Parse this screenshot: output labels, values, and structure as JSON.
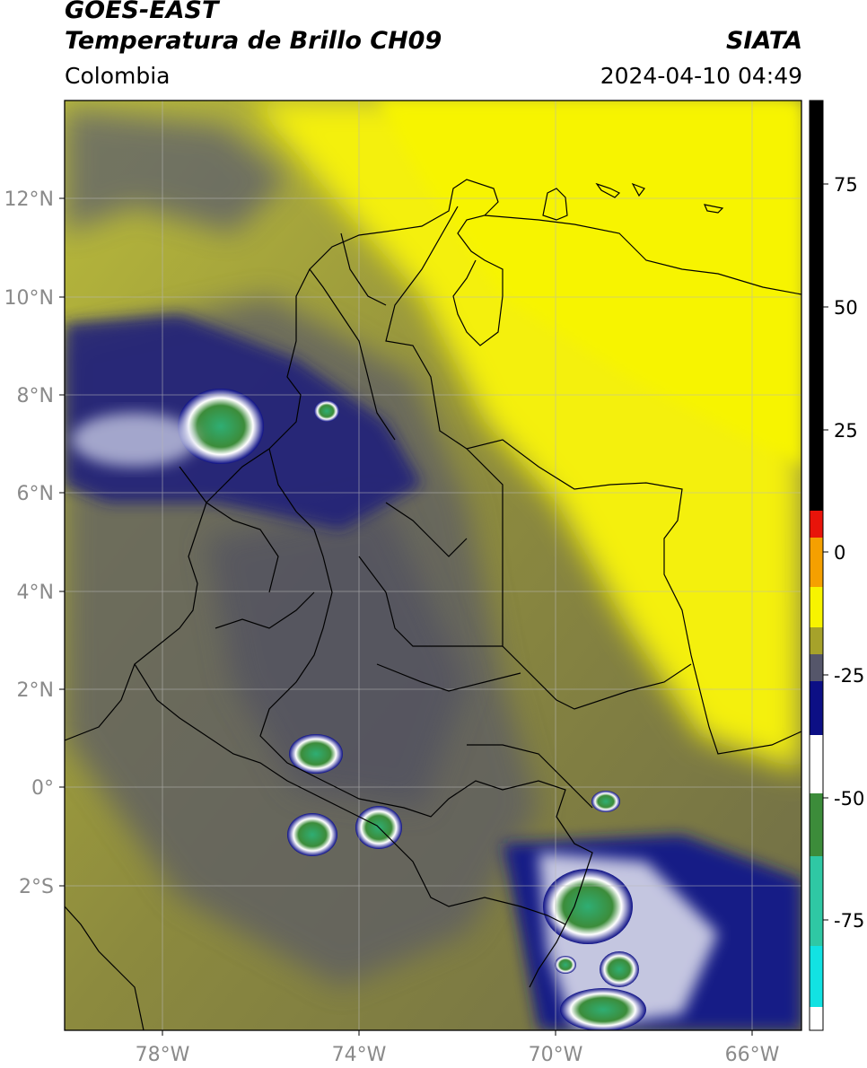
{
  "header": {
    "satellite": "GOES-EAST",
    "product": "Temperatura de Brillo CH09",
    "agency": "SIATA",
    "region": "Colombia",
    "datetime": "2024-04-10 04:49"
  },
  "axes": {
    "lat_labels": [
      "12°N",
      "10°N",
      "8°N",
      "6°N",
      "4°N",
      "2°N",
      "0°",
      "2°S"
    ],
    "lon_labels": [
      "78°W",
      "74°W",
      "70°W",
      "66°W"
    ],
    "lon_range": [
      -80,
      -65
    ],
    "lat_range": [
      -5,
      14
    ],
    "grid": true
  },
  "colorbar": {
    "tick_labels": [
      "75",
      "50",
      "25",
      "0",
      "-25",
      "-50",
      "-75"
    ],
    "range": [
      -100,
      90
    ],
    "colors": {
      "black": "#000000",
      "red": "#e8140a",
      "orange": "#f5a000",
      "yellow": "#f7f400",
      "olive": "#a6a22a",
      "gray": "#55566a",
      "navy": "#0c0f85",
      "white": "#ffffff",
      "green": "#3c8c3a",
      "teal": "#2fc8a4",
      "cyan": "#12e2e2"
    }
  }
}
